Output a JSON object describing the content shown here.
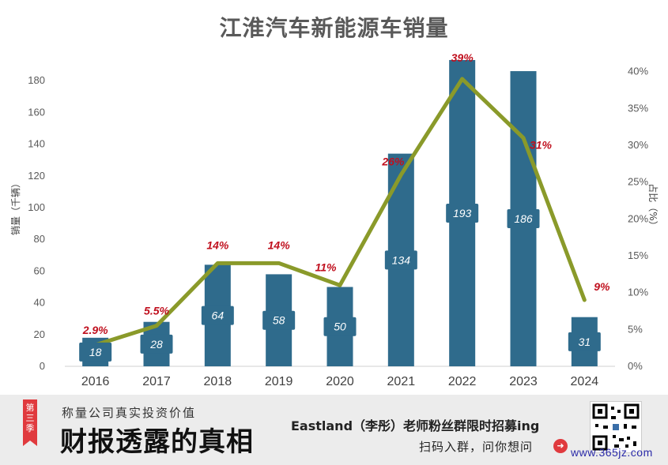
{
  "chart_data": {
    "type": "bar",
    "title": "江淮汽车新能源车销量",
    "categories": [
      "2016",
      "2017",
      "2018",
      "2019",
      "2020",
      "2021",
      "2022",
      "2023",
      "2024"
    ],
    "series": [
      {
        "name": "销量（千辆）",
        "type": "bar",
        "axis": "left",
        "values": [
          18,
          28,
          64,
          58,
          50,
          134,
          193,
          186,
          31
        ],
        "labels": [
          "18",
          "28",
          "64",
          "58",
          "50",
          "134",
          "193",
          "186",
          "31"
        ]
      },
      {
        "name": "占比（%）",
        "type": "line",
        "axis": "right",
        "values": [
          2.9,
          5.5,
          14,
          14,
          11,
          26,
          39,
          31,
          9
        ],
        "labels": [
          "2.9%",
          "5.5%",
          "14%",
          "14%",
          "11%",
          "26%",
          "39%",
          "31%",
          "9%"
        ]
      }
    ],
    "ylabel": "销量（千辆）",
    "y2label": "占比（%）",
    "ylim": [
      0,
      195
    ],
    "y2lim": [
      0,
      42
    ],
    "yticks": [
      0,
      20,
      40,
      60,
      80,
      100,
      120,
      140,
      160,
      180
    ],
    "y2ticks": [
      "0%",
      "5%",
      "10%",
      "15%",
      "20%",
      "25%",
      "30%",
      "35%",
      "40%"
    ],
    "grid": false,
    "colors": {
      "bar": "#2f6b8c",
      "line": "#8a9a2a",
      "pct_label": "#c0101e"
    }
  },
  "banner": {
    "season_tag": "第三季",
    "subtitle": "称量公司真实投资价值",
    "title": "财报透露的真相",
    "recruit": "Eastland（李彤）老师粉丝群限时招募ing",
    "cta": "扫码入群，问你想问",
    "cta_icon": "arrow-right-circle-icon",
    "qr_icon": "qr-code-icon"
  },
  "watermark": "www.365jz.com"
}
